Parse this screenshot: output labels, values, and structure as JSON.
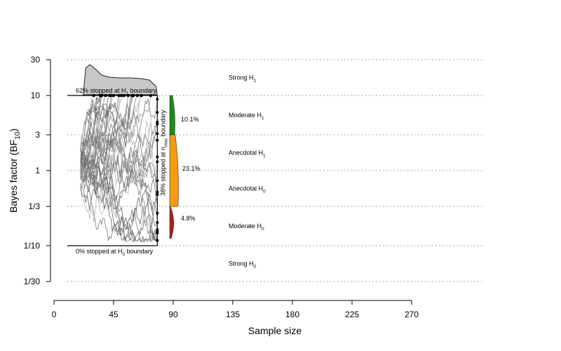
{
  "chart_data": {
    "type": "line",
    "xlabel": "Sample size",
    "ylabel_main": "Bayes factor (BF",
    "ylabel_sub": "10",
    "ylabel_close": ")",
    "x_ticks": [
      0,
      45,
      90,
      135,
      180,
      225,
      270
    ],
    "xlim": [
      0,
      270
    ],
    "y_ticks": [
      {
        "label": "30",
        "value": 30
      },
      {
        "label": "10",
        "value": 10
      },
      {
        "label": "3",
        "value": 3
      },
      {
        "label": "1",
        "value": 1
      },
      {
        "label": "1/3",
        "value": 0.3333
      },
      {
        "label": "1/10",
        "value": 0.1
      },
      {
        "label": "1/30",
        "value": 0.03333
      }
    ],
    "y_scale": "log",
    "ylim": [
      0.03333,
      30
    ],
    "evidence_zones": [
      {
        "text": "Strong H",
        "sub": "1",
        "value": 17.3
      },
      {
        "text": "Moderate H",
        "sub": "1",
        "value": 5.48
      },
      {
        "text": "Anecdotal H",
        "sub": "1",
        "value": 1.73
      },
      {
        "text": "Anecdotal H",
        "sub": "0",
        "value": 0.577
      },
      {
        "text": "Moderate H",
        "sub": "0",
        "value": 0.183
      },
      {
        "text": "Strong H",
        "sub": "0",
        "value": 0.0577
      }
    ],
    "boundary_labels": {
      "upper": {
        "text_a": "62% stopped at H",
        "sub": "1",
        "text_b": " boundary",
        "value": 10
      },
      "lower": {
        "text_a": "0% stopped at H",
        "sub": "0",
        "text_b": " boundary",
        "value": 0.1
      },
      "nmax": {
        "text_a": "38% stopped at n",
        "sub": "max",
        "text_b": " boundary",
        "x": 78
      }
    },
    "nmax_distribution": [
      {
        "label": "10.1%",
        "color": "#1a8a1a",
        "y_range": [
          3,
          10
        ]
      },
      {
        "label": "23.1%",
        "color": "#f59a12",
        "y_range": [
          0.3333,
          3
        ]
      },
      {
        "label": "4.8%",
        "color": "#b01c1c",
        "y_range": [
          0.125,
          0.3333
        ]
      }
    ],
    "stop_density_note": "Gray density of sample sizes at which trajectories hit the H1 boundary",
    "n_start": 20,
    "n_max": 78,
    "upper_boundary": 10,
    "lower_boundary": 0.1,
    "grid": "dotted at y ticks",
    "colors": {
      "trajectory": "#808080",
      "density_fill": "#c8c8c8",
      "axis": "#000000",
      "grid": "#888888"
    }
  }
}
